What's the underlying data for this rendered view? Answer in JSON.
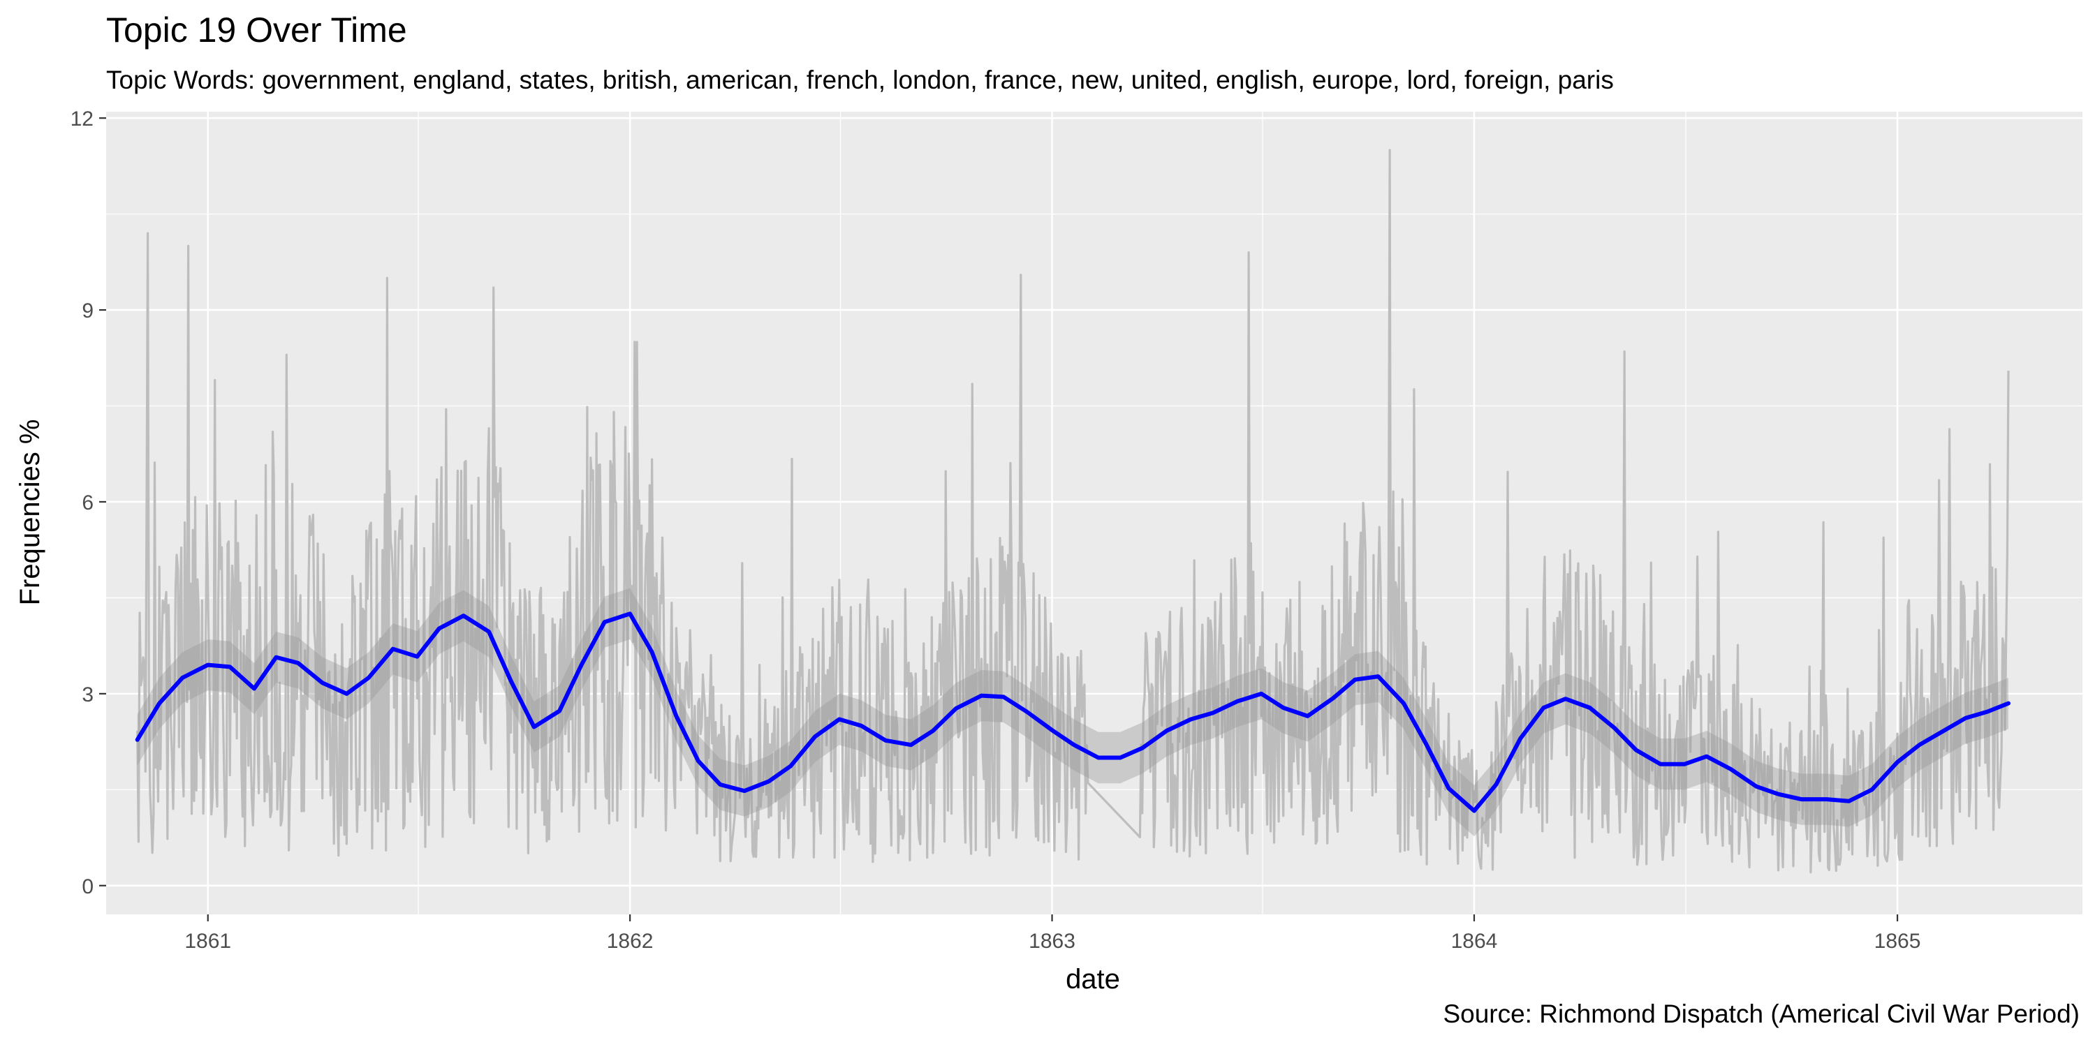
{
  "header": {
    "title": "Topic 19 Over Time",
    "subtitle": "Topic Words: government, england, states, british, american, french, london, france, new, united, english, europe, lord, foreign, paris"
  },
  "footer": {
    "caption": "Source: Richmond Dispatch (Americal Civil War Period)"
  },
  "colors": {
    "panel": "#ebebeb",
    "grid": "#ffffff",
    "raw_line": "#bdbdbd",
    "ribbon": "#999999",
    "smooth_line": "#0000ff"
  },
  "chart_data": {
    "type": "line",
    "title": "Topic 19 Over Time",
    "subtitle": "Topic Words: government, england, states, british, american, french, london, france, new, united, english, europe, lord, foreign, paris",
    "xlabel": "date",
    "ylabel": "Frequencies %",
    "x_ticks": [
      "1861",
      "1862",
      "1863",
      "1864",
      "1865"
    ],
    "y_ticks": [
      0,
      3,
      6,
      9,
      12
    ],
    "xlim": [
      "1860-10-05",
      "1865-06-10"
    ],
    "ylim": [
      -0.45,
      12.1
    ],
    "grid": true,
    "legend": "none",
    "series": [
      {
        "role": "smoothed trend (loess with confidence band)",
        "x": [
          "1860-11-01",
          "1860-11-20",
          "1860-12-10",
          "1861-01-01",
          "1861-01-20",
          "1861-02-10",
          "1861-03-01",
          "1861-03-20",
          "1861-04-10",
          "1861-05-01",
          "1861-05-20",
          "1861-06-10",
          "1861-07-01",
          "1861-07-20",
          "1861-08-10",
          "1861-09-01",
          "1861-09-20",
          "1861-10-10",
          "1861-11-01",
          "1861-11-20",
          "1861-12-10",
          "1862-01-01",
          "1862-01-20",
          "1862-02-10",
          "1862-03-01",
          "1862-03-20",
          "1862-04-10",
          "1862-05-01",
          "1862-05-20",
          "1862-06-10",
          "1862-07-01",
          "1862-07-20",
          "1862-08-10",
          "1862-09-01",
          "1862-09-20",
          "1862-10-10",
          "1862-11-01",
          "1862-11-20",
          "1862-12-10",
          "1863-01-01",
          "1863-01-20",
          "1863-02-10",
          "1863-03-01",
          "1863-03-20",
          "1863-04-10",
          "1863-05-01",
          "1863-05-20",
          "1863-06-10",
          "1863-07-01",
          "1863-07-20",
          "1863-08-10",
          "1863-09-01",
          "1863-09-20",
          "1863-10-10",
          "1863-11-01",
          "1863-11-20",
          "1863-12-10",
          "1864-01-01",
          "1864-01-20",
          "1864-02-10",
          "1864-03-01",
          "1864-03-20",
          "1864-04-10",
          "1864-05-01",
          "1864-05-20",
          "1864-06-10",
          "1864-07-01",
          "1864-07-20",
          "1864-08-10",
          "1864-09-01",
          "1864-09-20",
          "1864-10-10",
          "1864-11-01",
          "1864-11-20",
          "1864-12-10",
          "1865-01-01",
          "1865-01-20",
          "1865-02-10",
          "1865-03-01",
          "1865-03-20",
          "1865-04-07"
        ],
        "y": [
          2.28,
          2.85,
          3.25,
          3.45,
          3.42,
          3.08,
          3.57,
          3.48,
          3.17,
          3.0,
          3.25,
          3.7,
          3.58,
          4.02,
          4.22,
          3.97,
          3.2,
          2.48,
          2.73,
          3.45,
          4.12,
          4.25,
          3.65,
          2.65,
          1.95,
          1.58,
          1.48,
          1.63,
          1.87,
          2.33,
          2.6,
          2.5,
          2.27,
          2.2,
          2.42,
          2.77,
          2.97,
          2.95,
          2.72,
          2.43,
          2.2,
          2.0,
          2.0,
          2.15,
          2.42,
          2.6,
          2.7,
          2.88,
          3.0,
          2.78,
          2.65,
          2.93,
          3.22,
          3.27,
          2.85,
          2.23,
          1.52,
          1.17,
          1.58,
          2.3,
          2.78,
          2.92,
          2.78,
          2.47,
          2.12,
          1.9,
          1.9,
          2.02,
          1.82,
          1.55,
          1.43,
          1.35,
          1.35,
          1.32,
          1.5,
          1.93,
          2.2,
          2.42,
          2.62,
          2.72,
          2.85
        ],
        "band_halfwidth": 0.4
      },
      {
        "role": "raw daily frequency",
        "peaks": [
          {
            "x": "1860-11-10",
            "y": 10.2
          },
          {
            "x": "1860-12-15",
            "y": 10.0
          },
          {
            "x": "1861-03-10",
            "y": 8.3
          },
          {
            "x": "1861-06-05",
            "y": 9.5
          },
          {
            "x": "1861-09-05",
            "y": 9.35
          },
          {
            "x": "1862-01-05",
            "y": 8.5
          },
          {
            "x": "1862-12-05",
            "y": 9.55
          },
          {
            "x": "1863-06-20",
            "y": 9.9
          },
          {
            "x": "1863-10-20",
            "y": 11.5
          },
          {
            "x": "1864-05-10",
            "y": 8.35
          },
          {
            "x": "1865-04-07",
            "y": 8.05
          }
        ]
      }
    ]
  }
}
